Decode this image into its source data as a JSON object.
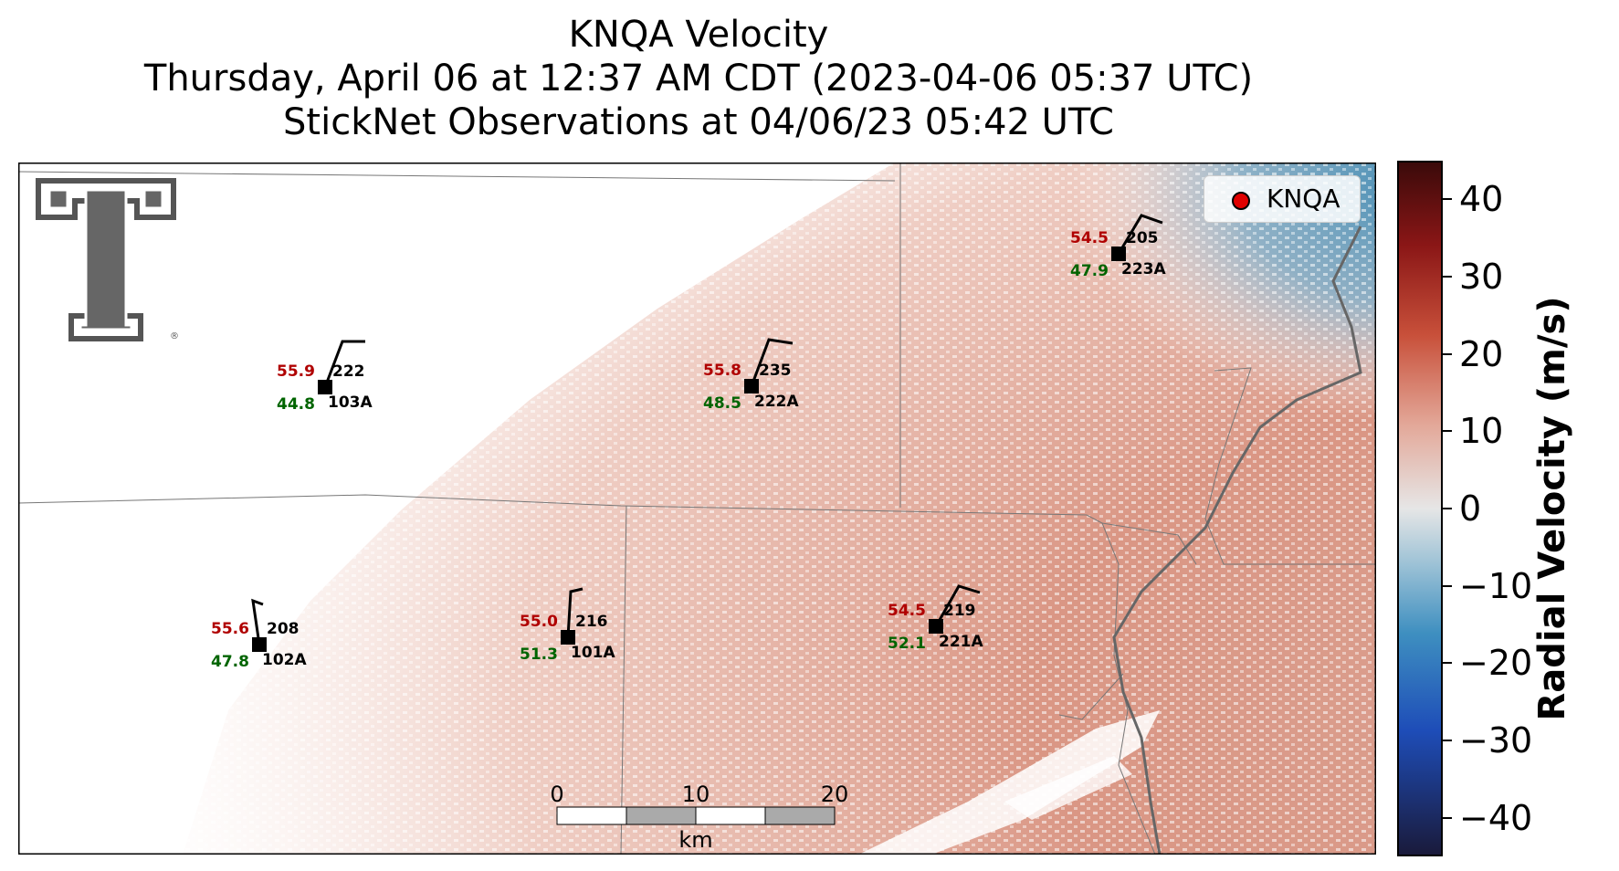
{
  "title": {
    "line1": "KNQA Velocity",
    "line2": "Thursday, April 06 at 12:37 AM CDT (2023-04-06 05:37 UTC)",
    "line3": "StickNet Observations at 04/06/23 05:42 UTC"
  },
  "legend": {
    "label": "KNQA",
    "marker_color": "#e00000"
  },
  "colorbar": {
    "label": "Radial Velocity (m/s)",
    "ticks": [
      "40",
      "30",
      "20",
      "10",
      "0",
      "−10",
      "−20",
      "−30",
      "−40"
    ],
    "range": [
      -45,
      45
    ],
    "colors": [
      "#1a1a3a",
      "#1e4db8",
      "#3e8fc0",
      "#9dc2d6",
      "#e6e6e6",
      "#e3a899",
      "#c8503a",
      "#8a1616",
      "#3a0a0a"
    ]
  },
  "scalebar": {
    "ticks": [
      "0",
      "10",
      "20"
    ],
    "unit": "km"
  },
  "stations": [
    {
      "id": "103A",
      "temp": "55.9",
      "dew": "44.8",
      "dir": "222"
    },
    {
      "id": "222A",
      "temp": "55.8",
      "dew": "48.5",
      "dir": "235"
    },
    {
      "id": "223A",
      "temp": "54.5",
      "dew": "47.9",
      "dir": "205"
    },
    {
      "id": "102A",
      "temp": "55.6",
      "dew": "47.8",
      "dir": "208"
    },
    {
      "id": "101A",
      "temp": "55.0",
      "dew": "51.3",
      "dir": "216"
    },
    {
      "id": "221A",
      "temp": "54.5",
      "dew": "52.1",
      "dir": "219"
    }
  ],
  "logo": {
    "name": "texas-tech-double-t-logo"
  }
}
